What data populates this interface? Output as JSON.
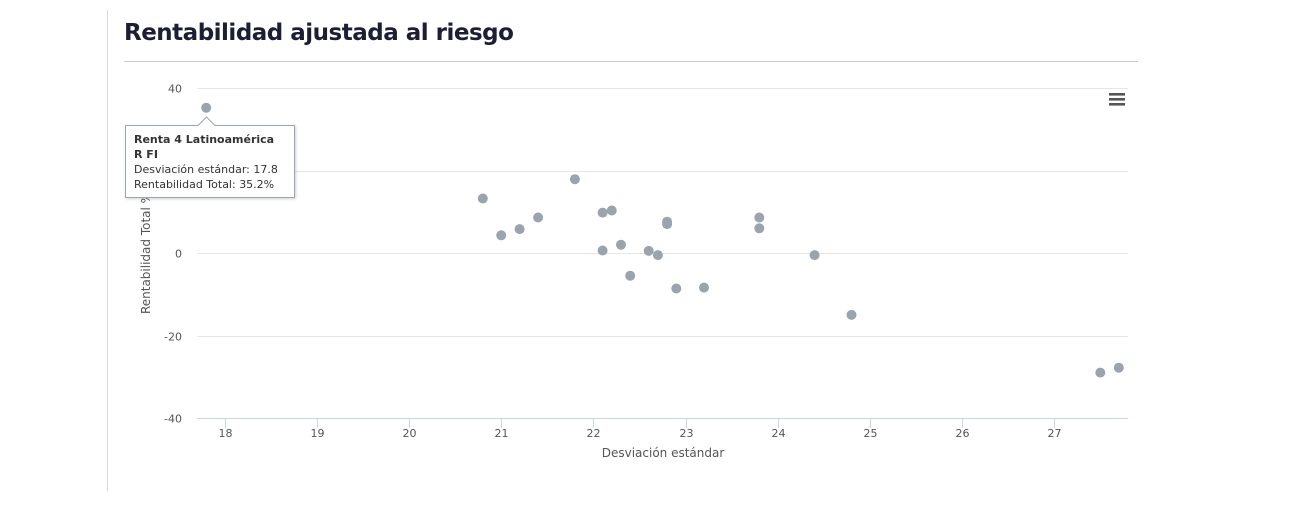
{
  "page": {
    "title": "Rentabilidad ajustada al riesgo"
  },
  "chart_data": {
    "type": "scatter",
    "title": "",
    "xlabel": "Desviación estándar",
    "ylabel": "Rentabilidad Total %",
    "xlim": [
      17.7,
      27.8
    ],
    "ylim": [
      -40,
      40
    ],
    "x_ticks": [
      "18",
      "19",
      "20",
      "21",
      "22",
      "23",
      "24",
      "25",
      "26",
      "27"
    ],
    "y_ticks": [
      "40",
      "20",
      "0",
      "-20",
      "-40"
    ],
    "grid": true,
    "marker_color": "#9aa4ae",
    "points": [
      {
        "x": 17.8,
        "y": 35.2
      },
      {
        "x": 20.8,
        "y": 13.2
      },
      {
        "x": 21.0,
        "y": 4.3
      },
      {
        "x": 21.2,
        "y": 5.8
      },
      {
        "x": 21.4,
        "y": 8.6
      },
      {
        "x": 21.8,
        "y": 17.9
      },
      {
        "x": 22.1,
        "y": 9.8
      },
      {
        "x": 22.2,
        "y": 10.3
      },
      {
        "x": 22.1,
        "y": 0.6
      },
      {
        "x": 22.3,
        "y": 2.0
      },
      {
        "x": 22.4,
        "y": -5.5
      },
      {
        "x": 22.6,
        "y": 0.5
      },
      {
        "x": 22.7,
        "y": -0.5
      },
      {
        "x": 22.8,
        "y": 7.6
      },
      {
        "x": 22.8,
        "y": 7.0
      },
      {
        "x": 22.9,
        "y": -8.6
      },
      {
        "x": 23.2,
        "y": -8.4
      },
      {
        "x": 23.8,
        "y": 8.6
      },
      {
        "x": 23.8,
        "y": 6.0
      },
      {
        "x": 24.4,
        "y": -0.5
      },
      {
        "x": 24.8,
        "y": -15.0
      },
      {
        "x": 27.5,
        "y": -29.0
      },
      {
        "x": 27.7,
        "y": -27.8
      }
    ],
    "tooltip": {
      "title": "Renta 4 Latinoamérica R FI",
      "line1": "Desviación estándar: 17.8",
      "line2": "Rentabilidad Total: 35.2%"
    }
  },
  "icons": {
    "menu": "hamburger-menu-icon"
  }
}
